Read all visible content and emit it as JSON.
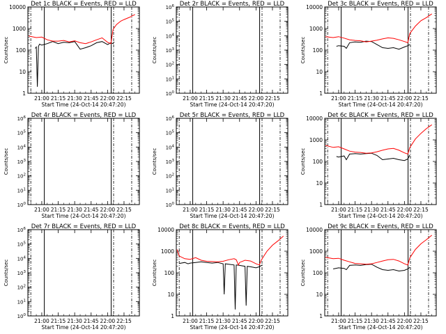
{
  "xlabel": "Start Time (24-Oct-14 20:47:20)",
  "ylabel": "Counts/sec",
  "colors": {
    "events": "#000000",
    "lld": "#ff0000",
    "background": "#ffffff"
  },
  "chart_data": [
    {
      "type": "line",
      "title": "Det 1c BLACK = Events, RED = LLD",
      "xlabel": "Start Time (24-Oct-14 20:47:20)",
      "ylabel": "Counts/sec",
      "y_scale": "log",
      "ylim": [
        1,
        10000
      ],
      "yticks": [
        "1",
        "10",
        "100",
        "1000",
        "10000"
      ],
      "xticks": [
        "21:00",
        "21:15",
        "21:30",
        "21:45",
        "22:00",
        "22:15"
      ],
      "series": [
        {
          "name": "Events",
          "color": "#000000",
          "x": [
            "20:54",
            "20:55",
            "20:56",
            "20:57",
            "20:58",
            "21:00",
            "21:05",
            "21:10",
            "21:15",
            "21:20",
            "21:25",
            "21:30",
            "21:35",
            "21:40",
            "21:45",
            "21:50",
            "21:55",
            "22:00",
            "22:03",
            "22:05",
            "22:06"
          ],
          "y": [
            120,
            140,
            2,
            150,
            190,
            170,
            200,
            250,
            200,
            230,
            220,
            250,
            110,
            130,
            160,
            220,
            250,
            180,
            220,
            200,
            240
          ]
        },
        {
          "name": "LLD",
          "color": "#ff0000",
          "x": [
            "20:48",
            "20:55",
            "21:00",
            "21:05",
            "21:10",
            "21:15",
            "21:20",
            "21:25",
            "21:30",
            "21:35",
            "21:40",
            "21:45",
            "21:50",
            "21:55",
            "22:00",
            "22:03",
            "22:05",
            "22:08",
            "22:12",
            "22:15",
            "22:20",
            "22:25"
          ],
          "y": [
            450,
            380,
            400,
            300,
            260,
            260,
            280,
            240,
            270,
            220,
            200,
            240,
            300,
            370,
            230,
            200,
            900,
            1500,
            2200,
            2600,
            3300,
            4500
          ]
        }
      ]
    },
    {
      "type": "line",
      "title": "Det 2r BLACK = Events, RED = LLD",
      "xlabel": "Start Time (24-Oct-14 20:47:20)",
      "ylabel": "Counts/sec",
      "y_scale": "log",
      "ylim": [
        1,
        1000000
      ],
      "yticks": [
        "10^0",
        "10^1",
        "10^2",
        "10^3",
        "10^4",
        "10^5",
        "10^6"
      ],
      "xticks": [
        "21:00",
        "21:15",
        "21:30",
        "21:45",
        "22:00",
        "22:15"
      ],
      "series": []
    },
    {
      "type": "line",
      "title": "Det 3c BLACK = Events, RED = LLD",
      "xlabel": "Start Time (24-Oct-14 20:47:20)",
      "ylabel": "Counts/sec",
      "y_scale": "log",
      "ylim": [
        1,
        10000
      ],
      "yticks": [
        "1",
        "10",
        "100",
        "1000",
        "10000"
      ],
      "xticks": [
        "21:00",
        "21:15",
        "21:30",
        "21:45",
        "22:00",
        "22:15"
      ],
      "series": [
        {
          "name": "Events",
          "color": "#000000",
          "x": [
            "20:58",
            "21:00",
            "21:05",
            "21:07",
            "21:10",
            "21:15",
            "21:20",
            "21:25",
            "21:30",
            "21:35",
            "21:40",
            "21:45",
            "21:50",
            "21:55",
            "22:00",
            "22:03",
            "22:05"
          ],
          "y": [
            150,
            160,
            150,
            120,
            220,
            240,
            230,
            260,
            250,
            180,
            130,
            120,
            130,
            110,
            140,
            160,
            180
          ]
        },
        {
          "name": "LLD",
          "color": "#ff0000",
          "x": [
            "20:48",
            "20:55",
            "21:00",
            "21:05",
            "21:10",
            "21:15",
            "21:20",
            "21:25",
            "21:30",
            "21:35",
            "21:40",
            "21:45",
            "21:50",
            "21:55",
            "22:00",
            "22:03",
            "22:05",
            "22:10",
            "22:15",
            "22:20",
            "22:25"
          ],
          "y": [
            420,
            380,
            420,
            360,
            300,
            280,
            270,
            240,
            260,
            290,
            330,
            370,
            350,
            300,
            250,
            220,
            600,
            1300,
            2300,
            3200,
            4800
          ]
        }
      ]
    },
    {
      "type": "line",
      "title": "Det 4r BLACK = Events, RED = LLD",
      "xlabel": "Start Time (24-Oct-14 20:47:20)",
      "ylabel": "Counts/sec",
      "y_scale": "log",
      "ylim": [
        1,
        1000000
      ],
      "yticks": [
        "10^0",
        "10^1",
        "10^2",
        "10^3",
        "10^4",
        "10^5",
        "10^6"
      ],
      "xticks": [
        "21:00",
        "21:15",
        "21:30",
        "21:45",
        "22:00",
        "22:15"
      ],
      "series": []
    },
    {
      "type": "line",
      "title": "Det 5r BLACK = Events, RED = LLD",
      "xlabel": "Start Time (24-Oct-14 20:47:20)",
      "ylabel": "Counts/sec",
      "y_scale": "log",
      "ylim": [
        1,
        1000000
      ],
      "yticks": [
        "10^0",
        "10^1",
        "10^2",
        "10^3",
        "10^4",
        "10^5",
        "10^6"
      ],
      "xticks": [
        "21:00",
        "21:15",
        "21:30",
        "21:45",
        "22:00",
        "22:15"
      ],
      "series": []
    },
    {
      "type": "line",
      "title": "Det 6c BLACK = Events, RED = LLD",
      "xlabel": "Start Time (24-Oct-14 20:47:20)",
      "ylabel": "Counts/sec",
      "y_scale": "log",
      "ylim": [
        1,
        10000
      ],
      "yticks": [
        "1",
        "10",
        "100",
        "1000",
        "10000"
      ],
      "xticks": [
        "21:00",
        "21:15",
        "21:30",
        "21:45",
        "22:00",
        "22:15"
      ],
      "series": [
        {
          "name": "Events",
          "color": "#000000",
          "x": [
            "20:58",
            "21:00",
            "21:05",
            "21:07",
            "21:10",
            "21:15",
            "21:20",
            "21:25",
            "21:30",
            "21:35",
            "21:40",
            "21:45",
            "21:50",
            "21:55",
            "22:00",
            "22:03",
            "22:05"
          ],
          "y": [
            170,
            160,
            180,
            120,
            220,
            230,
            220,
            230,
            240,
            190,
            120,
            130,
            140,
            120,
            110,
            130,
            200
          ]
        },
        {
          "name": "LLD",
          "color": "#ff0000",
          "x": [
            "20:48",
            "20:55",
            "21:00",
            "21:05",
            "21:10",
            "21:15",
            "21:20",
            "21:25",
            "21:30",
            "21:35",
            "21:40",
            "21:45",
            "21:50",
            "21:55",
            "22:00",
            "22:03",
            "22:05",
            "22:10",
            "22:15",
            "22:20",
            "22:25"
          ],
          "y": [
            550,
            450,
            480,
            380,
            300,
            270,
            260,
            240,
            250,
            280,
            330,
            380,
            400,
            330,
            250,
            220,
            450,
            1100,
            2000,
            3300,
            5000
          ]
        }
      ]
    },
    {
      "type": "line",
      "title": "Det 7r BLACK = Events, RED = LLD",
      "xlabel": "Start Time (24-Oct-14 20:47:20)",
      "ylabel": "Counts/sec",
      "y_scale": "log",
      "ylim": [
        1,
        1000000
      ],
      "yticks": [
        "10^0",
        "10^1",
        "10^2",
        "10^3",
        "10^4",
        "10^5",
        "10^6"
      ],
      "xticks": [
        "21:00",
        "21:15",
        "21:30",
        "21:45",
        "22:00",
        "22:15"
      ],
      "series": []
    },
    {
      "type": "line",
      "title": "Det 8c BLACK = Events, RED = LLD",
      "xlabel": "Start Time (24-Oct-14 20:47:20)",
      "ylabel": "Counts/sec",
      "y_scale": "log",
      "ylim": [
        1,
        10000
      ],
      "yticks": [
        "1",
        "10",
        "100",
        "1000",
        "10000"
      ],
      "xticks": [
        "21:00",
        "21:15",
        "21:30",
        "21:45",
        "22:00",
        "22:15"
      ],
      "series": [
        {
          "name": "Events",
          "color": "#000000",
          "x": [
            "20:50",
            "20:55",
            "20:58",
            "21:00",
            "21:05",
            "21:10",
            "21:15",
            "21:20",
            "21:25",
            "21:30",
            "21:31",
            "21:32",
            "21:35",
            "21:40",
            "21:41",
            "21:42",
            "21:45",
            "21:50",
            "21:51",
            "21:52",
            "21:55",
            "22:00",
            "22:03",
            "22:05",
            "22:06"
          ],
          "y": [
            270,
            300,
            260,
            280,
            300,
            320,
            300,
            280,
            300,
            260,
            10,
            260,
            250,
            230,
            2,
            230,
            220,
            200,
            3,
            200,
            190,
            170,
            190,
            220,
            230
          ]
        },
        {
          "name": "LLD",
          "color": "#ff0000",
          "x": [
            "20:48",
            "20:50",
            "20:55",
            "21:00",
            "21:05",
            "21:10",
            "21:15",
            "21:20",
            "21:25",
            "21:30",
            "21:35",
            "21:40",
            "21:42",
            "21:44",
            "21:45",
            "21:50",
            "21:55",
            "22:00",
            "22:03",
            "22:05",
            "22:10",
            "22:15",
            "22:20",
            "22:25"
          ],
          "y": [
            1200,
            600,
            450,
            420,
            500,
            380,
            340,
            330,
            320,
            340,
            400,
            450,
            400,
            230,
            300,
            380,
            350,
            260,
            230,
            400,
            1000,
            1900,
            3000,
            5000
          ]
        }
      ]
    },
    {
      "type": "line",
      "title": "Det 9c BLACK = Events, RED = LLD",
      "xlabel": "Start Time (24-Oct-14 20:47:20)",
      "ylabel": "Counts/sec",
      "y_scale": "log",
      "ylim": [
        1,
        10000
      ],
      "yticks": [
        "1",
        "10",
        "100",
        "1000",
        "10000"
      ],
      "xticks": [
        "21:00",
        "21:15",
        "21:30",
        "21:45",
        "22:00",
        "22:15"
      ],
      "series": [
        {
          "name": "Events",
          "color": "#000000",
          "x": [
            "20:55",
            "21:00",
            "21:05",
            "21:07",
            "21:10",
            "21:15",
            "21:20",
            "21:25",
            "21:30",
            "21:35",
            "21:40",
            "21:45",
            "21:50",
            "21:55",
            "22:00",
            "22:03",
            "22:05"
          ],
          "y": [
            150,
            170,
            160,
            140,
            220,
            230,
            220,
            240,
            250,
            180,
            140,
            130,
            140,
            120,
            130,
            150,
            180
          ]
        },
        {
          "name": "LLD",
          "color": "#ff0000",
          "x": [
            "20:48",
            "20:55",
            "21:00",
            "21:05",
            "21:10",
            "21:15",
            "21:20",
            "21:25",
            "21:30",
            "21:35",
            "21:40",
            "21:45",
            "21:50",
            "21:55",
            "22:00",
            "22:03",
            "22:05",
            "22:10",
            "22:15",
            "22:20",
            "22:25"
          ],
          "y": [
            520,
            450,
            470,
            380,
            320,
            270,
            260,
            250,
            260,
            300,
            350,
            400,
            420,
            350,
            260,
            230,
            500,
            1200,
            2200,
            3400,
            5500
          ]
        }
      ]
    }
  ]
}
